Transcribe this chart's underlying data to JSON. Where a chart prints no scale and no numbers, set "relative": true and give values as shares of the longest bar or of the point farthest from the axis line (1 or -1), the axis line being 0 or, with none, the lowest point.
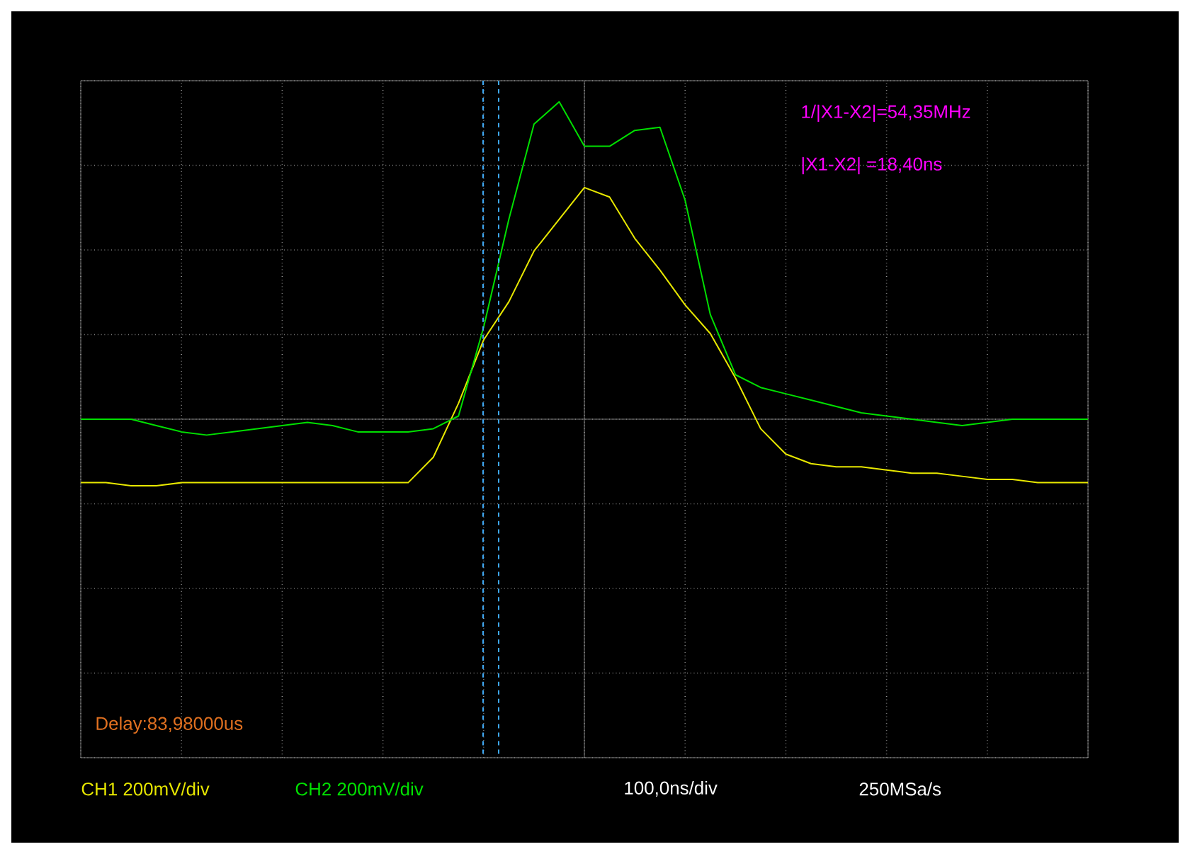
{
  "chart_data": {
    "type": "line",
    "relative": true,
    "categories": [
      null,
      null,
      null,
      null,
      null,
      null,
      null,
      null,
      null,
      null,
      null,
      null,
      null,
      null,
      null,
      null,
      null,
      null,
      null,
      null,
      null,
      null,
      null,
      null,
      null,
      null,
      null,
      null,
      null,
      null,
      null,
      null,
      null,
      null,
      null,
      null,
      null,
      null,
      null,
      null,
      null
    ],
    "grid": true,
    "tick_labels": false,
    "marker": "none",
    "line_style": "solid",
    "series": [
      {
        "color": "#e8e800",
        "values": [
          -0.2,
          -0.2,
          -0.21,
          -0.21,
          -0.2,
          -0.2,
          -0.2,
          -0.2,
          -0.2,
          -0.2,
          -0.2,
          -0.2,
          -0.2,
          -0.2,
          -0.12,
          0.05,
          0.25,
          0.37,
          0.53,
          0.63,
          0.73,
          0.7,
          0.57,
          0.47,
          0.36,
          0.27,
          0.13,
          -0.03,
          -0.11,
          -0.14,
          -0.15,
          -0.15,
          -0.16,
          -0.17,
          -0.17,
          -0.18,
          -0.19,
          -0.19,
          -0.2,
          -0.2,
          -0.2
        ]
      },
      {
        "color": "#00e000",
        "values": [
          0,
          0,
          0,
          -0.02,
          -0.04,
          -0.05,
          -0.04,
          -0.03,
          -0.02,
          -0.01,
          -0.02,
          -0.04,
          -0.04,
          -0.04,
          -0.03,
          0.01,
          0.29,
          0.63,
          0.93,
          1,
          0.86,
          0.86,
          0.91,
          0.92,
          0.69,
          0.33,
          0.14,
          0.1,
          0.08,
          0.06,
          0.04,
          0.02,
          0.01,
          0,
          -0.01,
          -0.02,
          -0.01,
          0,
          0,
          0,
          0
        ]
      }
    ],
    "annotations": [
      "1/|X1-X2|=54,35MHz",
      "|X1-X2|  =18,40ns",
      "Delay:83,98000us",
      "CH1 200mV/div",
      "CH2 200mV/div",
      "100,0ns/div",
      "250MSa/s"
    ]
  }
}
